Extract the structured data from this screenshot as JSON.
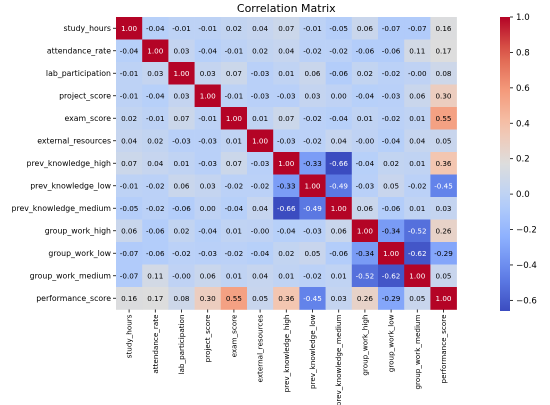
{
  "chart_data": {
    "type": "heatmap",
    "title": "Correlation Matrix",
    "labels": [
      "study_hours",
      "attendance_rate",
      "lab_participation",
      "project_score",
      "exam_score",
      "external_resources",
      "prev_knowledge_high",
      "prev_knowledge_low",
      "prev_knowledge_medium",
      "group_work_high",
      "group_work_low",
      "group_work_medium",
      "performance_score"
    ],
    "values": [
      [
        1.0,
        -0.04,
        -0.01,
        -0.01,
        0.02,
        0.04,
        0.07,
        -0.01,
        -0.05,
        0.06,
        -0.07,
        -0.07,
        0.16
      ],
      [
        -0.04,
        1.0,
        0.03,
        -0.04,
        -0.01,
        0.02,
        0.04,
        -0.02,
        -0.02,
        -0.06,
        -0.06,
        0.11,
        0.17
      ],
      [
        -0.01,
        0.03,
        1.0,
        0.03,
        0.07,
        -0.03,
        0.01,
        0.06,
        -0.06,
        0.02,
        -0.02,
        -0.0,
        0.08
      ],
      [
        -0.01,
        -0.04,
        0.03,
        1.0,
        -0.01,
        -0.03,
        -0.03,
        0.03,
        0.0,
        -0.04,
        -0.03,
        0.06,
        0.3
      ],
      [
        0.02,
        -0.01,
        0.07,
        -0.01,
        1.0,
        0.01,
        0.07,
        -0.02,
        -0.04,
        0.01,
        -0.02,
        0.01,
        0.55
      ],
      [
        0.04,
        0.02,
        -0.03,
        -0.03,
        0.01,
        1.0,
        -0.03,
        -0.02,
        0.04,
        -0.0,
        -0.04,
        0.04,
        0.05
      ],
      [
        0.07,
        0.04,
        0.01,
        -0.03,
        0.07,
        -0.03,
        1.0,
        -0.33,
        -0.66,
        -0.04,
        0.02,
        0.01,
        0.36
      ],
      [
        -0.01,
        -0.02,
        0.06,
        0.03,
        -0.02,
        -0.02,
        -0.33,
        1.0,
        -0.49,
        -0.03,
        0.05,
        -0.02,
        -0.45
      ],
      [
        -0.05,
        -0.02,
        -0.06,
        0.0,
        -0.04,
        0.04,
        -0.66,
        -0.49,
        1.0,
        0.06,
        -0.06,
        0.01,
        0.03
      ],
      [
        0.06,
        -0.06,
        0.02,
        -0.04,
        0.01,
        -0.0,
        -0.04,
        -0.03,
        0.06,
        1.0,
        -0.34,
        -0.52,
        0.26
      ],
      [
        -0.07,
        -0.06,
        -0.02,
        -0.03,
        -0.02,
        -0.04,
        0.02,
        0.05,
        -0.06,
        -0.34,
        1.0,
        -0.62,
        -0.29
      ],
      [
        -0.07,
        0.11,
        -0.0,
        0.06,
        0.01,
        0.04,
        0.01,
        -0.02,
        0.01,
        -0.52,
        -0.62,
        1.0,
        0.05
      ],
      [
        0.16,
        0.17,
        0.08,
        0.3,
        0.55,
        0.05,
        0.36,
        -0.45,
        0.03,
        0.26,
        -0.29,
        0.05,
        1.0
      ]
    ],
    "value_labels": [
      [
        "1.00",
        "-0.04",
        "-0.01",
        "-0.01",
        "0.02",
        "0.04",
        "0.07",
        "-0.01",
        "-0.05",
        "0.06",
        "-0.07",
        "-0.07",
        "0.16"
      ],
      [
        "-0.04",
        "1.00",
        "0.03",
        "-0.04",
        "-0.01",
        "0.02",
        "0.04",
        "-0.02",
        "-0.02",
        "-0.06",
        "-0.06",
        "0.11",
        "0.17"
      ],
      [
        "-0.01",
        "0.03",
        "1.00",
        "0.03",
        "0.07",
        "-0.03",
        "0.01",
        "0.06",
        "-0.06",
        "0.02",
        "-0.02",
        "-0.00",
        "0.08"
      ],
      [
        "-0.01",
        "-0.04",
        "0.03",
        "1.00",
        "-0.01",
        "-0.03",
        "-0.03",
        "0.03",
        "0.00",
        "-0.04",
        "-0.03",
        "0.06",
        "0.30"
      ],
      [
        "0.02",
        "-0.01",
        "0.07",
        "-0.01",
        "1.00",
        "0.01",
        "0.07",
        "-0.02",
        "-0.04",
        "0.01",
        "-0.02",
        "0.01",
        "0.55"
      ],
      [
        "0.04",
        "0.02",
        "-0.03",
        "-0.03",
        "0.01",
        "1.00",
        "-0.03",
        "-0.02",
        "0.04",
        "-0.00",
        "-0.04",
        "0.04",
        "0.05"
      ],
      [
        "0.07",
        "0.04",
        "0.01",
        "-0.03",
        "0.07",
        "-0.03",
        "1.00",
        "-0.33",
        "-0.66",
        "-0.04",
        "0.02",
        "0.01",
        "0.36"
      ],
      [
        "-0.01",
        "-0.02",
        "0.06",
        "0.03",
        "-0.02",
        "-0.02",
        "-0.33",
        "1.00",
        "-0.49",
        "-0.03",
        "0.05",
        "-0.02",
        "-0.45"
      ],
      [
        "-0.05",
        "-0.02",
        "-0.06",
        "0.00",
        "-0.04",
        "0.04",
        "-0.66",
        "-0.49",
        "1.00",
        "0.06",
        "-0.06",
        "0.01",
        "0.03"
      ],
      [
        "0.06",
        "-0.06",
        "0.02",
        "-0.04",
        "0.01",
        "-0.00",
        "-0.04",
        "-0.03",
        "0.06",
        "1.00",
        "-0.34",
        "-0.52",
        "0.26"
      ],
      [
        "-0.07",
        "-0.06",
        "-0.02",
        "-0.03",
        "-0.02",
        "-0.04",
        "0.02",
        "0.05",
        "-0.06",
        "-0.34",
        "1.00",
        "-0.62",
        "-0.29"
      ],
      [
        "-0.07",
        "0.11",
        "-0.00",
        "0.06",
        "0.01",
        "0.04",
        "0.01",
        "-0.02",
        "0.01",
        "-0.52",
        "-0.62",
        "1.00",
        "0.05"
      ],
      [
        "0.16",
        "0.17",
        "0.08",
        "0.30",
        "0.55",
        "0.05",
        "0.36",
        "-0.45",
        "0.03",
        "0.26",
        "-0.29",
        "0.05",
        "1.00"
      ]
    ],
    "colorscale": "coolwarm",
    "vmin": -0.66,
    "vmax": 1.0,
    "colorbar_ticks": [
      1.0,
      0.8,
      0.6,
      0.4,
      0.2,
      0.0,
      -0.2,
      -0.4,
      -0.6
    ],
    "colorbar_tick_labels": [
      "1.0",
      "0.8",
      "0.6",
      "0.4",
      "0.2",
      "0.0",
      "−0.2",
      "−0.4",
      "−0.6"
    ],
    "xlabel": "",
    "ylabel": ""
  }
}
